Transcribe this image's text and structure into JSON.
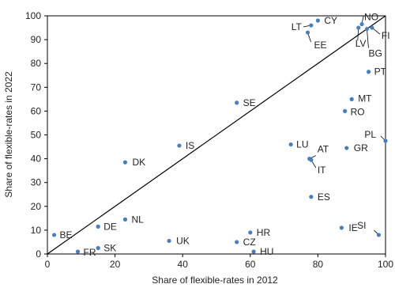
{
  "chart_data": {
    "type": "scatter",
    "title": "",
    "xlabel": "Share of flexible-rates in 2012",
    "ylabel": "Share of flexible-rates in 2022",
    "xlim": [
      0,
      100
    ],
    "ylim": [
      0,
      100
    ],
    "xticks": [
      0,
      20,
      40,
      60,
      80,
      100
    ],
    "yticks": [
      0,
      10,
      20,
      30,
      40,
      50,
      60,
      70,
      80,
      90,
      100
    ],
    "grid": false,
    "diagonal_line": true,
    "point_color": "#4a7ebb",
    "points": [
      {
        "label": "BE",
        "x": 2,
        "y": 8
      },
      {
        "label": "FR",
        "x": 9,
        "y": 1
      },
      {
        "label": "SK",
        "x": 15,
        "y": 2.5
      },
      {
        "label": "DE",
        "x": 15,
        "y": 11.5
      },
      {
        "label": "NL",
        "x": 23,
        "y": 14.5
      },
      {
        "label": "DK",
        "x": 23,
        "y": 38.5
      },
      {
        "label": "UK",
        "x": 36,
        "y": 5.5
      },
      {
        "label": "IS",
        "x": 39,
        "y": 45.5
      },
      {
        "label": "SE",
        "x": 56,
        "y": 63.5
      },
      {
        "label": "CZ",
        "x": 56,
        "y": 5
      },
      {
        "label": "HR",
        "x": 60,
        "y": 9
      },
      {
        "label": "HU",
        "x": 61,
        "y": 1
      },
      {
        "label": "LU",
        "x": 72,
        "y": 46
      },
      {
        "label": "AT",
        "x": 77.5,
        "y": 40
      },
      {
        "label": "IT",
        "x": 78,
        "y": 39.5
      },
      {
        "label": "ES",
        "x": 78,
        "y": 24
      },
      {
        "label": "EE",
        "x": 77,
        "y": 93
      },
      {
        "label": "LT",
        "x": 78,
        "y": 96
      },
      {
        "label": "CY",
        "x": 80,
        "y": 98
      },
      {
        "label": "IE",
        "x": 87,
        "y": 11
      },
      {
        "label": "RO",
        "x": 88,
        "y": 60
      },
      {
        "label": "GR",
        "x": 88.5,
        "y": 44.5
      },
      {
        "label": "MT",
        "x": 90,
        "y": 65
      },
      {
        "label": "LV",
        "x": 92,
        "y": 95
      },
      {
        "label": "NO",
        "x": 93,
        "y": 96.5
      },
      {
        "label": "BG",
        "x": 94.5,
        "y": 94.5
      },
      {
        "label": "FI",
        "x": 96,
        "y": 95
      },
      {
        "label": "PT",
        "x": 95,
        "y": 76.5
      },
      {
        "label": "SI",
        "x": 98,
        "y": 8
      },
      {
        "label": "PL",
        "x": 100,
        "y": 47.5
      }
    ]
  }
}
